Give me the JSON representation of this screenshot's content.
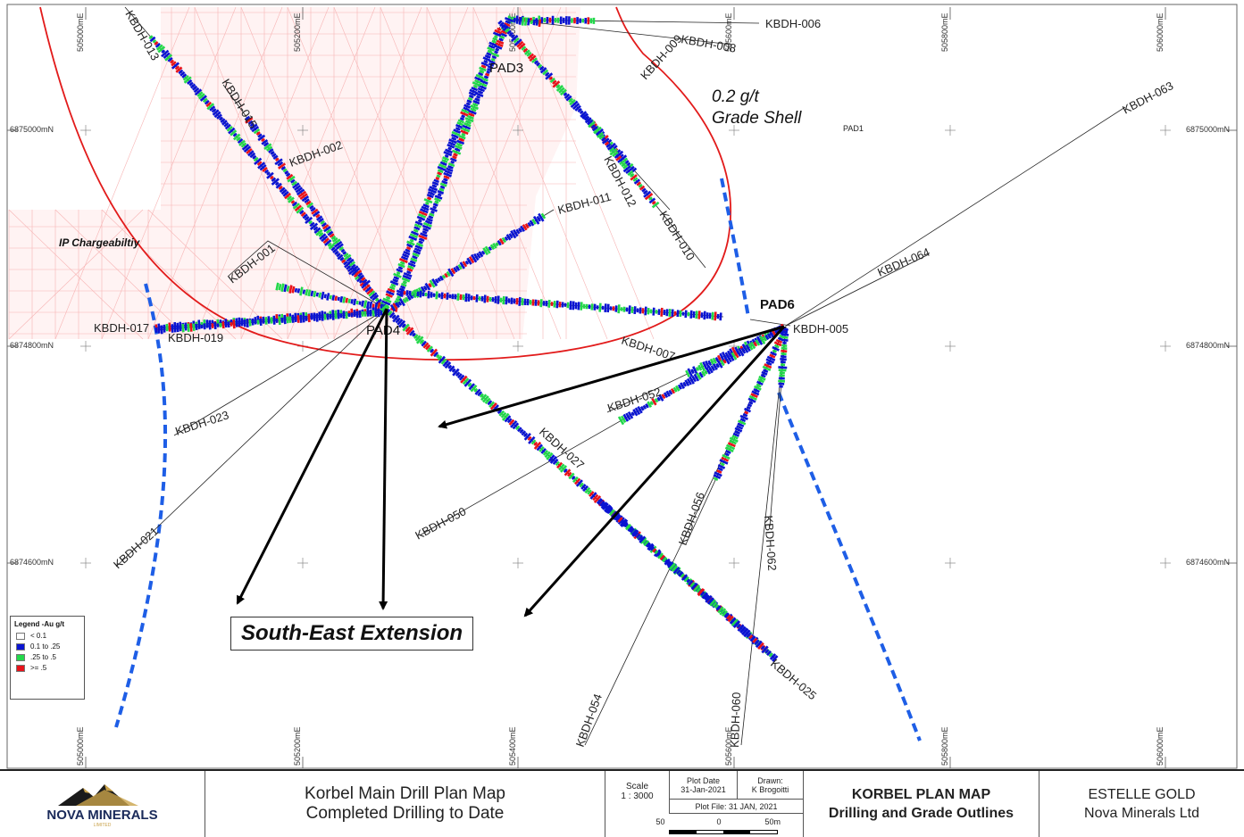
{
  "map": {
    "grid_eastings": [
      "505000mE",
      "505200mE",
      "505400mE",
      "505600mE",
      "505800mE",
      "506000mE"
    ],
    "grid_northings": [
      "6875000mN",
      "6874800mN",
      "6874600mN"
    ],
    "labels": {
      "grade_shell_line1": "0.2 g/t",
      "grade_shell_line2": "Grade Shell",
      "ip": "IP Chargeabiltiy",
      "pad1": "PAD1",
      "pad3": "PAD3",
      "pad4": "PAD4",
      "pad6": "PAD6",
      "south_east": "South-East Extension"
    },
    "holes": [
      "KBDH-006",
      "KBDH-008",
      "KBDH-009",
      "KBDH-013",
      "KBDH-015",
      "KBDH-002",
      "KBDH-012",
      "KBDH-011",
      "KBDH-010",
      "KBDH-001",
      "KBDH-063",
      "KBDH-064",
      "KBDH-005",
      "KBDH-017",
      "KBDH-019",
      "KBDH-007",
      "KBDH-052",
      "KBDH-023",
      "KBDH-027",
      "KBDH-050",
      "KBDH-056",
      "KBDH-062",
      "KBDH-021",
      "KBDH-025",
      "KBDH-054",
      "KBDH-060"
    ],
    "colors": {
      "lt01": "#ffffff",
      "low": "#0a14d2",
      "mid": "#22d84a",
      "high": "#e8121a",
      "shell": "#e21b1b",
      "ip_grid": "#f7a9a9",
      "dashed": "#1e5ee6"
    }
  },
  "legend": {
    "title": "Legend -Au g/t",
    "items": [
      {
        "label": "< 0.1",
        "color": "#ffffff"
      },
      {
        "label": "0.1 to .25",
        "color": "#0a14d2"
      },
      {
        "label": ".25 to .5",
        "color": "#22d84a"
      },
      {
        "label": ">= .5",
        "color": "#e8121a"
      }
    ]
  },
  "title_block": {
    "logo_text": "NOVA MINERALS",
    "logo_sub": "LIMITED",
    "map_title_line1": "Korbel Main Drill Plan Map",
    "map_title_line2": "Completed Drilling to Date",
    "scale_label": "Scale",
    "scale_value": "1 : 3000",
    "plot_date_label": "Plot Date",
    "plot_date_value": "31-Jan-2021",
    "drawn_label": "Drawn:",
    "drawn_value": "K Brogoitti",
    "plot_file": "Plot File: 31 JAN, 2021",
    "scalebar": [
      "50",
      "0",
      "50m"
    ],
    "plan_title_line1": "KORBEL PLAN MAP",
    "plan_title_line2": "Drilling and Grade Outlines",
    "company_line1": "ESTELLE GOLD",
    "company_line2": "Nova Minerals Ltd"
  }
}
